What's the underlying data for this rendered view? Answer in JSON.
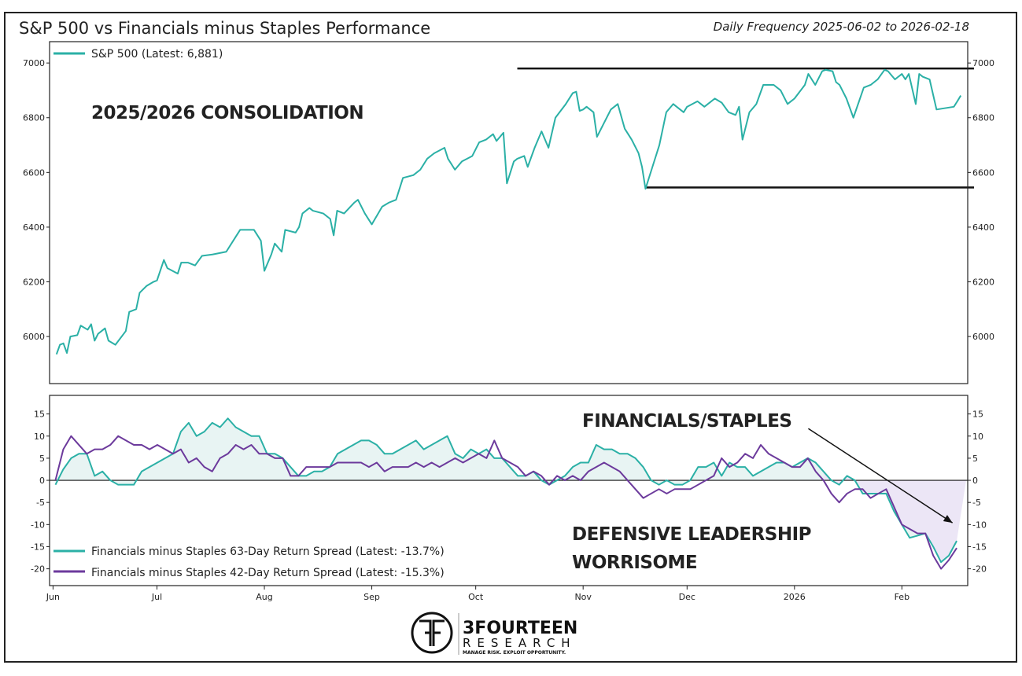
{
  "title": "S&P 500 vs Financials minus Staples Performance",
  "subtitle": "Daily Frequency 2025-06-02 to 2026-02-18",
  "colors": {
    "teal": "#2bb0a6",
    "purple": "#6c3a9c",
    "teal_fill": "#e8f4f3",
    "purple_fill": "#ece6f6",
    "frame": "#222222"
  },
  "logo": {
    "line1": "3FOURTEEN",
    "line2": "RESEARCH",
    "tagline": "MANAGE RISK. EXPLOIT OPPORTUNITY."
  },
  "chart_data": [
    {
      "type": "line",
      "x_unit": "days since 2025-06-01",
      "xlim": [
        -1,
        264
      ],
      "ylim": [
        5828,
        7078
      ],
      "yticks": [
        6000,
        6200,
        6400,
        6600,
        6800,
        7000
      ],
      "xticks": [
        {
          "day": 0,
          "label": "Jun"
        },
        {
          "day": 30,
          "label": "Jul"
        },
        {
          "day": 61,
          "label": "Aug"
        },
        {
          "day": 92,
          "label": "Sep"
        },
        {
          "day": 122,
          "label": "Oct"
        },
        {
          "day": 153,
          "label": "Nov"
        },
        {
          "day": 183,
          "label": "Dec"
        },
        {
          "day": 214,
          "label": "2026"
        },
        {
          "day": 245,
          "label": "Feb"
        }
      ],
      "legend": "top-left",
      "series": [
        {
          "name": "S&P 500 (Latest: 6,881)",
          "color": "#2bb0a6",
          "points": [
            [
              1,
              5935
            ],
            [
              2,
              5970
            ],
            [
              3,
              5975
            ],
            [
              4,
              5940
            ],
            [
              5,
              6000
            ],
            [
              7,
              6005
            ],
            [
              8,
              6040
            ],
            [
              10,
              6025
            ],
            [
              11,
              6045
            ],
            [
              12,
              5985
            ],
            [
              13,
              6010
            ],
            [
              15,
              6030
            ],
            [
              16,
              5985
            ],
            [
              18,
              5970
            ],
            [
              21,
              6020
            ],
            [
              22,
              6090
            ],
            [
              24,
              6100
            ],
            [
              25,
              6160
            ],
            [
              27,
              6185
            ],
            [
              29,
              6200
            ],
            [
              30,
              6205
            ],
            [
              32,
              6280
            ],
            [
              33,
              6250
            ],
            [
              36,
              6230
            ],
            [
              37,
              6270
            ],
            [
              39,
              6270
            ],
            [
              41,
              6260
            ],
            [
              43,
              6295
            ],
            [
              46,
              6300
            ],
            [
              50,
              6310
            ],
            [
              52,
              6350
            ],
            [
              54,
              6390
            ],
            [
              56,
              6390
            ],
            [
              58,
              6390
            ],
            [
              60,
              6350
            ],
            [
              61,
              6240
            ],
            [
              63,
              6300
            ],
            [
              64,
              6340
            ],
            [
              66,
              6310
            ],
            [
              67,
              6390
            ],
            [
              70,
              6380
            ],
            [
              71,
              6400
            ],
            [
              72,
              6450
            ],
            [
              74,
              6470
            ],
            [
              75,
              6460
            ],
            [
              78,
              6450
            ],
            [
              80,
              6430
            ],
            [
              81,
              6370
            ],
            [
              82,
              6460
            ],
            [
              84,
              6450
            ],
            [
              87,
              6490
            ],
            [
              88,
              6500
            ],
            [
              90,
              6450
            ],
            [
              92,
              6410
            ],
            [
              95,
              6475
            ],
            [
              97,
              6490
            ],
            [
              99,
              6500
            ],
            [
              101,
              6580
            ],
            [
              104,
              6590
            ],
            [
              106,
              6610
            ],
            [
              108,
              6650
            ],
            [
              110,
              6670
            ],
            [
              113,
              6690
            ],
            [
              114,
              6650
            ],
            [
              116,
              6610
            ],
            [
              118,
              6640
            ],
            [
              121,
              6660
            ],
            [
              123,
              6710
            ],
            [
              125,
              6720
            ],
            [
              127,
              6740
            ],
            [
              128,
              6715
            ],
            [
              130,
              6745
            ],
            [
              131,
              6560
            ],
            [
              133,
              6640
            ],
            [
              134,
              6650
            ],
            [
              136,
              6660
            ],
            [
              137,
              6620
            ],
            [
              139,
              6690
            ],
            [
              141,
              6750
            ],
            [
              143,
              6690
            ],
            [
              145,
              6800
            ],
            [
              148,
              6850
            ],
            [
              150,
              6890
            ],
            [
              151,
              6895
            ],
            [
              152,
              6825
            ],
            [
              153,
              6830
            ],
            [
              154,
              6840
            ],
            [
              156,
              6820
            ],
            [
              157,
              6730
            ],
            [
              159,
              6780
            ],
            [
              161,
              6830
            ],
            [
              163,
              6850
            ],
            [
              165,
              6760
            ],
            [
              167,
              6720
            ],
            [
              169,
              6670
            ],
            [
              170,
              6620
            ],
            [
              171,
              6540
            ],
            [
              173,
              6620
            ],
            [
              175,
              6700
            ],
            [
              177,
              6820
            ],
            [
              179,
              6850
            ],
            [
              182,
              6820
            ],
            [
              183,
              6840
            ],
            [
              186,
              6860
            ],
            [
              188,
              6840
            ],
            [
              191,
              6870
            ],
            [
              193,
              6855
            ],
            [
              195,
              6820
            ],
            [
              197,
              6810
            ],
            [
              198,
              6840
            ],
            [
              199,
              6720
            ],
            [
              201,
              6820
            ],
            [
              203,
              6850
            ],
            [
              205,
              6920
            ],
            [
              208,
              6920
            ],
            [
              210,
              6900
            ],
            [
              212,
              6850
            ],
            [
              214,
              6870
            ],
            [
              217,
              6920
            ],
            [
              218,
              6960
            ],
            [
              220,
              6920
            ],
            [
              222,
              6970
            ],
            [
              223,
              6975
            ],
            [
              225,
              6970
            ],
            [
              226,
              6930
            ],
            [
              227,
              6920
            ],
            [
              229,
              6870
            ],
            [
              231,
              6800
            ],
            [
              234,
              6910
            ],
            [
              236,
              6920
            ],
            [
              238,
              6940
            ],
            [
              240,
              6975
            ],
            [
              241,
              6970
            ],
            [
              243,
              6940
            ],
            [
              245,
              6960
            ],
            [
              246,
              6940
            ],
            [
              247,
              6960
            ],
            [
              249,
              6850
            ],
            [
              250,
              6960
            ],
            [
              251,
              6950
            ],
            [
              253,
              6940
            ],
            [
              255,
              6830
            ],
            [
              260,
              6840
            ],
            [
              261,
              6860
            ],
            [
              262,
              6881
            ]
          ]
        }
      ],
      "reference_lines": [
        {
          "value": 6980,
          "from_day": 134
        },
        {
          "value": 6545,
          "from_day": 171
        }
      ],
      "annotations": [
        "2025/2026 CONSOLIDATION"
      ]
    },
    {
      "type": "line",
      "x_unit": "days since 2025-06-01",
      "xlim": [
        -1,
        264
      ],
      "ylim": [
        -23.8,
        19.2
      ],
      "yticks": [
        15,
        10,
        5,
        0,
        -5,
        -10,
        -15,
        -20
      ],
      "legend": "bottom-left",
      "start_day": 0.7,
      "step_days": 2.262,
      "series": [
        {
          "name": "Financials minus Staples 63-Day Return Spread (Latest: -13.7%)",
          "color": "#2bb0a6",
          "values": [
            -1,
            2.5,
            5,
            6,
            6,
            1,
            2,
            0,
            -1,
            -1,
            -1,
            2,
            3,
            4,
            5,
            6,
            11,
            13,
            10,
            11,
            13,
            12,
            14,
            12,
            11,
            10,
            10,
            6,
            6,
            5,
            3,
            1,
            1,
            2,
            2,
            3,
            6,
            7,
            8,
            9,
            9,
            8,
            6,
            6,
            7,
            8,
            9,
            7,
            8,
            9,
            10,
            6,
            5,
            7,
            6,
            7,
            5,
            5,
            3,
            1,
            1,
            2,
            0,
            -1,
            0,
            1,
            3,
            4,
            4,
            8,
            7,
            7,
            6,
            6,
            5,
            3,
            0,
            -1,
            0,
            -1,
            -1,
            0,
            3,
            3,
            4,
            1,
            4,
            3,
            3,
            1,
            2,
            3,
            4,
            4,
            3,
            4,
            5,
            4,
            2,
            0,
            -1,
            1,
            0,
            -3,
            -3,
            -3,
            -3,
            -7,
            -10,
            -13,
            -12.5,
            -12,
            -15,
            -18.5,
            -17,
            -13.7
          ]
        },
        {
          "name": "Financials minus Staples 42-Day Return Spread (Latest: -15.3%)",
          "color": "#6c3a9c",
          "values": [
            0,
            7,
            10,
            8,
            6,
            7,
            7,
            8,
            10,
            9,
            8,
            8,
            7,
            8,
            7,
            6,
            7,
            4,
            5,
            3,
            2,
            5,
            6,
            8,
            7,
            8,
            6,
            6,
            5,
            5,
            1,
            1,
            3,
            3,
            3,
            3,
            4,
            4,
            4,
            4,
            3,
            4,
            2,
            3,
            3,
            3,
            4,
            3,
            4,
            3,
            4,
            5,
            4,
            5,
            6,
            5,
            9,
            5,
            4,
            3,
            1,
            2,
            1,
            -1,
            1,
            0,
            1,
            0,
            2,
            3,
            4,
            3,
            2,
            0,
            -2,
            -4,
            -3,
            -2,
            -3,
            -2,
            -2,
            -2,
            -1,
            0,
            1,
            5,
            3,
            4,
            6,
            5,
            8,
            6,
            5,
            4,
            3,
            3,
            5,
            2,
            0,
            -3,
            -5,
            -3,
            -2,
            -2,
            -4,
            -3,
            -2,
            -6,
            -10,
            -11,
            -12,
            -12,
            -17,
            -20,
            -18,
            -15.3
          ]
        }
      ],
      "zero_line": 0,
      "arrow": {
        "from": [
          218,
          11.7
        ],
        "to": [
          259.6,
          -9.6
        ]
      },
      "annotations": [
        "FINANCIALS/STAPLES",
        "DEFENSIVE LEADERSHIP",
        "WORRISOME"
      ]
    }
  ]
}
